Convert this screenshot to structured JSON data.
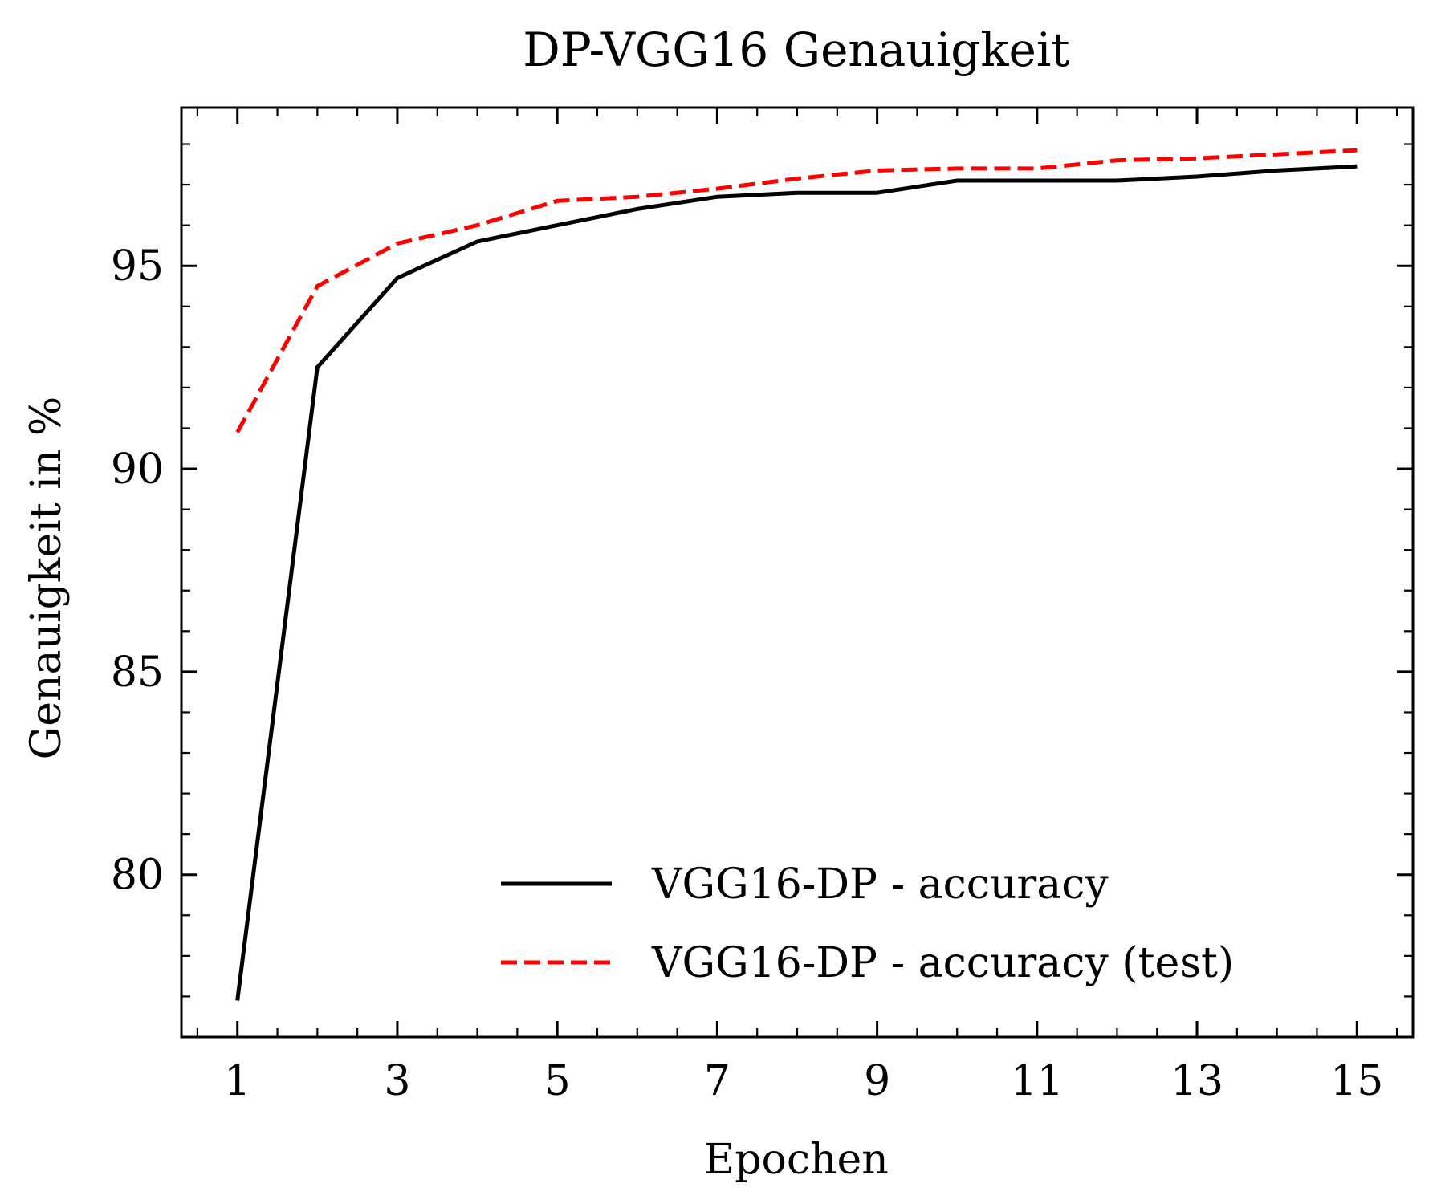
{
  "chart_data": {
    "type": "line",
    "title": "DP-VGG16 Genauigkeit",
    "xlabel": "Epochen",
    "ylabel": "Genauigkeit in %",
    "xlim": [
      0.3,
      15.7
    ],
    "ylim": [
      76.0,
      98.9
    ],
    "xticks": [
      1,
      3,
      5,
      7,
      9,
      11,
      13,
      15
    ],
    "yticks": [
      80,
      85,
      90,
      95
    ],
    "grid": false,
    "legend_position": "lower-right",
    "x": [
      1,
      2,
      3,
      4,
      5,
      6,
      7,
      8,
      9,
      10,
      11,
      12,
      13,
      14,
      15
    ],
    "series": [
      {
        "name": "VGG16-DP - accuracy",
        "color": "#000000",
        "style": "solid",
        "values": [
          76.9,
          92.5,
          94.7,
          95.6,
          96.0,
          96.4,
          96.7,
          96.8,
          96.8,
          97.1,
          97.1,
          97.1,
          97.2,
          97.35,
          97.45
        ]
      },
      {
        "name": "VGG16-DP - accuracy (test)",
        "color": "#ff0000",
        "style": "dashed",
        "values": [
          90.9,
          94.5,
          95.55,
          96.0,
          96.6,
          96.7,
          96.9,
          97.15,
          97.35,
          97.4,
          97.4,
          97.6,
          97.65,
          97.75,
          97.85
        ]
      }
    ]
  }
}
